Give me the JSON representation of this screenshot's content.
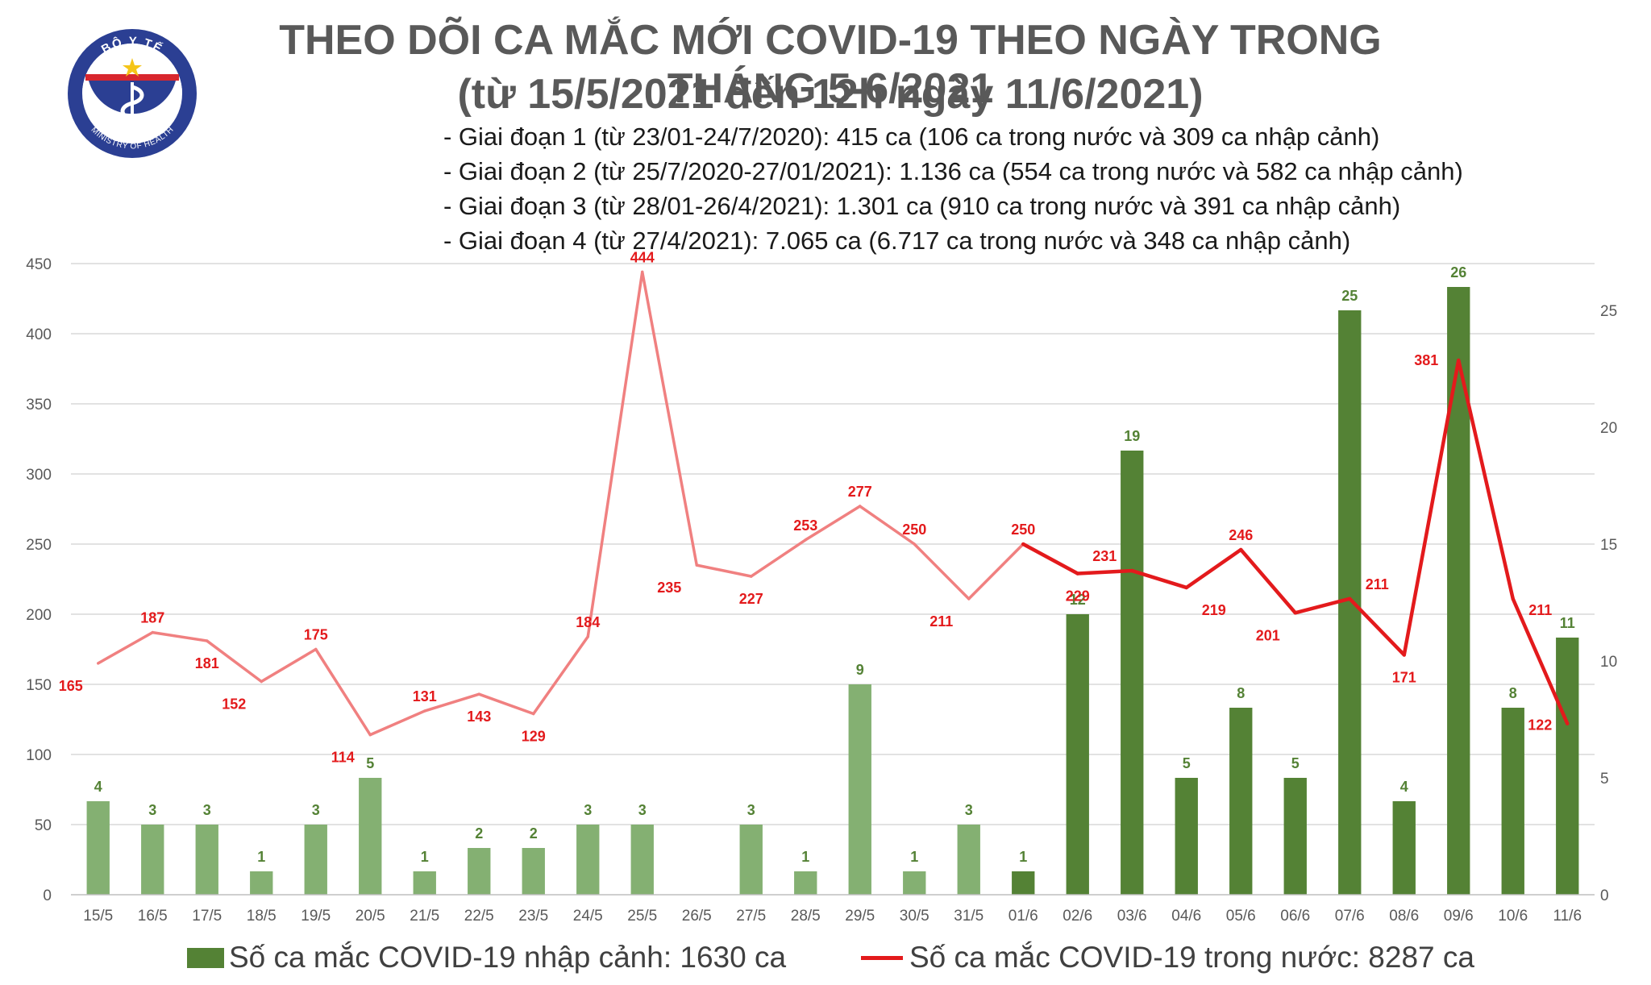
{
  "header": {
    "title_line1": "THEO DÕI CA MẮC MỚI COVID-19 THEO NGÀY TRONG THÁNG 5-6/2021",
    "title_line2": "(từ 15/5/2021 đến 12h ngày 11/6/2021)",
    "phases": [
      "- Giai đoạn 1 (từ 23/01-24/7/2020): 415 ca (106 ca trong nước và 309 ca nhập cảnh)",
      "- Giai đoạn 2 (từ 25/7/2020-27/01/2021): 1.136 ca (554 ca trong nước và 582 ca nhập cảnh)",
      "- Giai đoạn 3 (từ 28/01-26/4/2021): 1.301 ca (910 ca trong nước và 391 ca nhập cảnh)",
      "- Giai đoạn 4 (từ 27/4/2021): 7.065 ca (6.717 ca trong nước và 348 ca nhập cảnh)"
    ]
  },
  "logo": {
    "top_text": "BỘ Y TẾ",
    "bottom_text": "MINISTRY OF HEALTH",
    "colors": {
      "ring": "#2b3f93",
      "fill": "#ffffff",
      "star": "#f5c518",
      "band": "#d8262d"
    }
  },
  "colors": {
    "bar_early": "#84b072",
    "bar_late": "#548235",
    "bar_label": "#548235",
    "line_early": "#f08080",
    "line_late": "#e31a1c",
    "line_label": "#e31a1c",
    "grid": "#d9d9d9",
    "axis_text": "#595959"
  },
  "legend": {
    "bar_label": "Số ca mắc COVID-19 nhập cảnh: 1630 ca",
    "line_label": "Số ca mắc COVID-19 trong nước: 8287 ca"
  },
  "chart_data": {
    "type": "bar+line",
    "categories": [
      "15/5",
      "16/5",
      "17/5",
      "18/5",
      "19/5",
      "20/5",
      "21/5",
      "22/5",
      "23/5",
      "24/5",
      "25/5",
      "26/5",
      "27/5",
      "28/5",
      "29/5",
      "30/5",
      "31/5",
      "01/6",
      "02/6",
      "03/6",
      "04/6",
      "05/6",
      "06/6",
      "07/6",
      "08/6",
      "09/6",
      "10/6",
      "11/6"
    ],
    "series": [
      {
        "name": "Số ca mắc COVID-19 nhập cảnh: 1630 ca",
        "type": "bar",
        "axis": "right",
        "values": [
          4,
          3,
          3,
          1,
          3,
          5,
          1,
          2,
          2,
          3,
          3,
          null,
          3,
          1,
          9,
          1,
          3,
          1,
          12,
          19,
          5,
          8,
          5,
          25,
          4,
          26,
          8,
          11
        ]
      },
      {
        "name": "Số ca mắc COVID-19 trong nước: 8287 ca",
        "type": "line",
        "axis": "left",
        "values": [
          165,
          187,
          181,
          152,
          175,
          114,
          131,
          143,
          129,
          184,
          444,
          235,
          227,
          253,
          277,
          250,
          211,
          250,
          229,
          231,
          219,
          246,
          201,
          211,
          171,
          381,
          211,
          122
        ]
      }
    ],
    "left_axis": {
      "ylim": [
        0,
        450
      ],
      "ticks": [
        0,
        50,
        100,
        150,
        200,
        250,
        300,
        350,
        400,
        450
      ]
    },
    "right_axis": {
      "ylim": [
        0,
        27
      ],
      "ticks": [
        0,
        5,
        10,
        15,
        20,
        25
      ]
    },
    "style_change_from_category": "01/6",
    "grid": true,
    "legend_position": "bottom"
  }
}
